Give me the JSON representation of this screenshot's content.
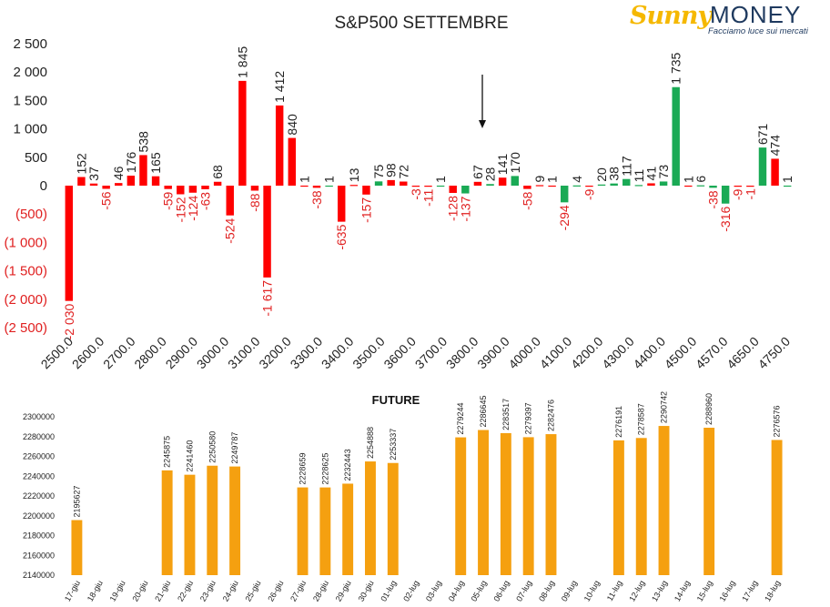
{
  "logo": {
    "brand_a": "Sunny",
    "brand_b": "MONEY",
    "tagline": "Facciamo luce sui mercati"
  },
  "colors": {
    "positive": "#1aaa55",
    "negative": "#ff0000",
    "negative_label": "#e02020",
    "future_bar": "#f5a010",
    "text": "#222222"
  },
  "chart_data": [
    {
      "type": "bar",
      "title": "S&P500 SETTEMBRE",
      "xlabel": "",
      "ylabel": "",
      "ylim": [
        -2500,
        2500
      ],
      "yticks": [
        {
          "value": 2500,
          "label": "2 500"
        },
        {
          "value": 2000,
          "label": "2 000"
        },
        {
          "value": 1500,
          "label": "1 500"
        },
        {
          "value": 1000,
          "label": "1 000"
        },
        {
          "value": 500,
          "label": "500"
        },
        {
          "value": 0,
          "label": "0"
        },
        {
          "value": -500,
          "label": "(500)"
        },
        {
          "value": -1000,
          "label": "(1 000)"
        },
        {
          "value": -1500,
          "label": "(1 500)"
        },
        {
          "value": -2000,
          "label": "(2 000)"
        },
        {
          "value": -2500,
          "label": "(2 500)"
        }
      ],
      "x_tick_labels": [
        "2500.0",
        "2600.0",
        "2700.0",
        "2800.0",
        "2900.0",
        "3000.0",
        "3100.0",
        "3200.0",
        "3300.0",
        "3400.0",
        "3500.0",
        "3600.0",
        "3700.0",
        "3800.0",
        "3900.0",
        "4000.0",
        "4100.0",
        "4200.0",
        "4300.0",
        "4400.0",
        "4500.0",
        "4570.0",
        "4650.0",
        "4750.0"
      ],
      "annotations": [
        {
          "type": "arrow-down",
          "at_x_tick": "3800.0",
          "offset_bars": 1
        }
      ],
      "grid": false,
      "legend": "none",
      "bars": [
        {
          "label": "-2 030",
          "value": -2030,
          "color": "red"
        },
        {
          "label": "152",
          "value": 152,
          "color": "red"
        },
        {
          "label": "37",
          "value": 37,
          "color": "red"
        },
        {
          "label": "-56",
          "value": -56,
          "color": "red"
        },
        {
          "label": "46",
          "value": 46,
          "color": "red"
        },
        {
          "label": "176",
          "value": 176,
          "color": "red"
        },
        {
          "label": "538",
          "value": 538,
          "color": "red"
        },
        {
          "label": "165",
          "value": 165,
          "color": "red"
        },
        {
          "label": "-59",
          "value": -59,
          "color": "red"
        },
        {
          "label": "-152",
          "value": -152,
          "color": "red"
        },
        {
          "label": "-124",
          "value": -124,
          "color": "red"
        },
        {
          "label": "-63",
          "value": -63,
          "color": "red"
        },
        {
          "label": "68",
          "value": 68,
          "color": "red"
        },
        {
          "label": "-524",
          "value": -524,
          "color": "red"
        },
        {
          "label": "1 845",
          "value": 1845,
          "color": "red"
        },
        {
          "label": "-88",
          "value": -88,
          "color": "red"
        },
        {
          "label": "-1 617",
          "value": -1617,
          "color": "red"
        },
        {
          "label": "1 412",
          "value": 1412,
          "color": "red"
        },
        {
          "label": "840",
          "value": 840,
          "color": "red"
        },
        {
          "label": "1",
          "value": 1,
          "color": "red"
        },
        {
          "label": "-38",
          "value": -38,
          "color": "red"
        },
        {
          "label": "1",
          "value": 1,
          "color": "green"
        },
        {
          "label": "-635",
          "value": -635,
          "color": "red"
        },
        {
          "label": "13",
          "value": 13,
          "color": "red"
        },
        {
          "label": "-157",
          "value": -157,
          "color": "red"
        },
        {
          "label": "75",
          "value": 75,
          "color": "green"
        },
        {
          "label": "98",
          "value": 98,
          "color": "red"
        },
        {
          "label": "72",
          "value": 72,
          "color": "red"
        },
        {
          "label": "-3",
          "value": -3,
          "color": "red"
        },
        {
          "label": "-11",
          "value": -11,
          "color": "red"
        },
        {
          "label": "1",
          "value": 1,
          "color": "green"
        },
        {
          "label": "-128",
          "value": -128,
          "color": "red"
        },
        {
          "label": "-137",
          "value": -137,
          "color": "green"
        },
        {
          "label": "67",
          "value": 67,
          "color": "red"
        },
        {
          "label": "28",
          "value": 28,
          "color": "green"
        },
        {
          "label": "141",
          "value": 141,
          "color": "red"
        },
        {
          "label": "170",
          "value": 170,
          "color": "green"
        },
        {
          "label": "-58",
          "value": -58,
          "color": "red"
        },
        {
          "label": "9",
          "value": 9,
          "color": "red"
        },
        {
          "label": "1",
          "value": 1,
          "color": "red"
        },
        {
          "label": "-294",
          "value": -294,
          "color": "green"
        },
        {
          "label": "4",
          "value": 4,
          "color": "green"
        },
        {
          "label": "-9",
          "value": -9,
          "color": "red"
        },
        {
          "label": "20",
          "value": 20,
          "color": "green"
        },
        {
          "label": "38",
          "value": 38,
          "color": "green"
        },
        {
          "label": "117",
          "value": 117,
          "color": "green"
        },
        {
          "label": "11",
          "value": 11,
          "color": "green"
        },
        {
          "label": "41",
          "value": 41,
          "color": "red"
        },
        {
          "label": "73",
          "value": 73,
          "color": "green"
        },
        {
          "label": "1 735",
          "value": 1735,
          "color": "green"
        },
        {
          "label": "1",
          "value": 1,
          "color": "red"
        },
        {
          "label": "6",
          "value": 6,
          "color": "green"
        },
        {
          "label": "-38",
          "value": -38,
          "color": "green"
        },
        {
          "label": "-316",
          "value": -316,
          "color": "green"
        },
        {
          "label": "-9",
          "value": -9,
          "color": "red"
        },
        {
          "label": "-1",
          "value": -1,
          "color": "red"
        },
        {
          "label": "671",
          "value": 671,
          "color": "green"
        },
        {
          "label": "474",
          "value": 474,
          "color": "red"
        },
        {
          "label": "1",
          "value": 1,
          "color": "green"
        }
      ]
    },
    {
      "type": "bar",
      "title": "FUTURE",
      "xlabel": "",
      "ylabel": "",
      "ylim": [
        2140000,
        2300000
      ],
      "yticks": [
        2300000,
        2280000,
        2260000,
        2240000,
        2220000,
        2200000,
        2180000,
        2160000,
        2140000
      ],
      "grid": false,
      "legend": "none",
      "categories": [
        "17-giu",
        "18-giu",
        "19-giu",
        "20-giu",
        "21-giu",
        "22-giu",
        "23-giu",
        "24-giu",
        "25-giu",
        "26-giu",
        "27-giu",
        "28-giu",
        "29-giu",
        "30-giu",
        "01-lug",
        "02-lug",
        "03-lug",
        "04-lug",
        "05-lug",
        "06-lug",
        "07-lug",
        "08-lug",
        "09-lug",
        "10-lug",
        "11-lug",
        "12-lug",
        "13-lug",
        "14-lug",
        "15-lug",
        "16-lug",
        "17-lug",
        "18-lug"
      ],
      "values": [
        2195627,
        null,
        null,
        null,
        2245875,
        2241460,
        2250580,
        2249787,
        null,
        null,
        2228659,
        2228625,
        2232443,
        2254888,
        2253337,
        null,
        null,
        2279244,
        2286645,
        2283517,
        2279397,
        2282476,
        null,
        null,
        2276191,
        2278587,
        2290742,
        null,
        2288960,
        null,
        null,
        2276576
      ]
    }
  ]
}
